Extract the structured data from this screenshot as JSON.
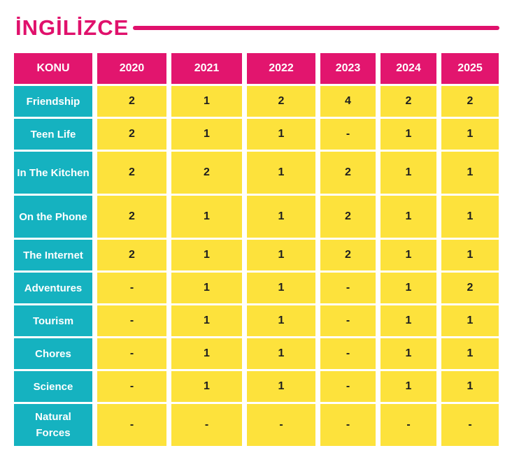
{
  "title": "İNGİLİZCE",
  "colors": {
    "accent": "#e0116c",
    "header_bg": "#e2156e",
    "topic_bg": "#15b2c0",
    "value_bg": "#fde23c"
  },
  "table": {
    "header": [
      "KONU",
      "2020",
      "2021",
      "2022",
      "2023",
      "2024",
      "2025"
    ],
    "rows": [
      {
        "topic": "Friendship",
        "values": [
          "2",
          "1",
          "2",
          "4",
          "2",
          "2"
        ]
      },
      {
        "topic": "Teen Life",
        "values": [
          "2",
          "1",
          "1",
          "-",
          "1",
          "1"
        ]
      },
      {
        "topic": "In The Kitchen",
        "values": [
          "2",
          "2",
          "1",
          "2",
          "1",
          "1"
        ]
      },
      {
        "topic": "On the Phone",
        "values": [
          "2",
          "1",
          "1",
          "2",
          "1",
          "1"
        ]
      },
      {
        "topic": "The Internet",
        "values": [
          "2",
          "1",
          "1",
          "2",
          "1",
          "1"
        ]
      },
      {
        "topic": "Adventures",
        "values": [
          "-",
          "1",
          "1",
          "-",
          "1",
          "2"
        ]
      },
      {
        "topic": "Tourism",
        "values": [
          "-",
          "1",
          "1",
          "-",
          "1",
          "1"
        ]
      },
      {
        "topic": "Chores",
        "values": [
          "-",
          "1",
          "1",
          "-",
          "1",
          "1"
        ]
      },
      {
        "topic": "Science",
        "values": [
          "-",
          "1",
          "1",
          "-",
          "1",
          "1"
        ]
      },
      {
        "topic": "Natural Forces",
        "values": [
          "-",
          "-",
          "-",
          "-",
          "-",
          "-"
        ]
      }
    ]
  }
}
